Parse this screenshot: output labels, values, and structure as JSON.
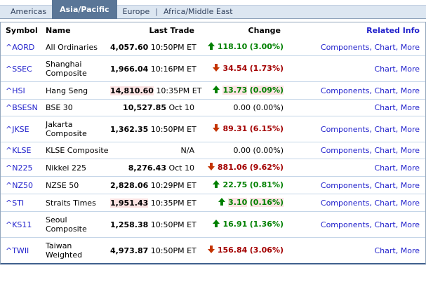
{
  "tabs": [
    {
      "label": "Americas",
      "active": false
    },
    {
      "label": "Asia/Pacific",
      "active": true
    },
    {
      "label": "Europe",
      "active": false
    },
    {
      "label": "Africa/Middle East",
      "active": false
    }
  ],
  "table": {
    "headers": [
      "Symbol",
      "Name",
      "Last Trade",
      "Change",
      "Related Info"
    ],
    "rows": [
      {
        "symbol": "^AORD",
        "name": "All Ordinaries",
        "price": "4,057.60",
        "time": "10:50PM ET",
        "direction": "up",
        "change": "118.10",
        "pct": "(3.00%)",
        "highlight": false,
        "links": [
          "Components",
          "Chart",
          "More"
        ]
      },
      {
        "symbol": "^SSEC",
        "name": "Shanghai Composite",
        "price": "1,966.04",
        "time": "10:16PM ET",
        "direction": "down",
        "change": "34.54",
        "pct": "(1.73%)",
        "highlight": false,
        "links": [
          "Chart",
          "More"
        ]
      },
      {
        "symbol": "^HSI",
        "name": "Hang Seng",
        "price": "14,810.60",
        "time": "10:35PM ET",
        "direction": "up",
        "change": "13.73",
        "pct": "(0.09%)",
        "highlight": true,
        "links": [
          "Components",
          "Chart",
          "More"
        ]
      },
      {
        "symbol": "^BSESN",
        "name": "BSE 30",
        "price": "10,527.85",
        "time": "Oct 10",
        "direction": "flat",
        "change": "0.00",
        "pct": "(0.00%)",
        "highlight": false,
        "links": [
          "Chart",
          "More"
        ]
      },
      {
        "symbol": "^JKSE",
        "name": "Jakarta Composite",
        "price": "1,362.35",
        "time": "10:50PM ET",
        "direction": "down",
        "change": "89.31",
        "pct": "(6.15%)",
        "highlight": false,
        "links": [
          "Components",
          "Chart",
          "More"
        ]
      },
      {
        "symbol": "^KLSE",
        "name": "KLSE Composite",
        "price": "N/A",
        "time": "",
        "direction": "flat",
        "change": "0.00",
        "pct": "(0.00%)",
        "highlight": false,
        "links": [
          "Components",
          "Chart",
          "More"
        ]
      },
      {
        "symbol": "^N225",
        "name": "Nikkei 225",
        "price": "8,276.43",
        "time": "Oct 10",
        "direction": "down",
        "change": "881.06",
        "pct": "(9.62%)",
        "highlight": false,
        "links": [
          "Chart",
          "More"
        ]
      },
      {
        "symbol": "^NZ50",
        "name": "NZSE 50",
        "price": "2,828.06",
        "time": "10:29PM ET",
        "direction": "up",
        "change": "22.75",
        "pct": "(0.81%)",
        "highlight": false,
        "links": [
          "Components",
          "Chart",
          "More"
        ]
      },
      {
        "symbol": "^STI",
        "name": "Straits Times",
        "price": "1,951.43",
        "time": "10:35PM ET",
        "direction": "up",
        "change": "3.10",
        "pct": "(0.16%)",
        "highlight": true,
        "links": [
          "Components",
          "Chart",
          "More"
        ]
      },
      {
        "symbol": "^KS11",
        "name": "Seoul Composite",
        "price": "1,258.38",
        "time": "10:50PM ET",
        "direction": "up",
        "change": "16.91",
        "pct": "(1.36%)",
        "highlight": false,
        "links": [
          "Components",
          "Chart",
          "More"
        ]
      },
      {
        "symbol": "^TWII",
        "name": "Taiwan Weighted",
        "price": "4,973.87",
        "time": "10:50PM ET",
        "direction": "down",
        "change": "156.84",
        "pct": "(3.06%)",
        "highlight": false,
        "links": [
          "Chart",
          "More"
        ]
      }
    ]
  },
  "icons": {
    "up": "up-arrow-icon",
    "down": "down-arrow-icon"
  },
  "colors": {
    "active_tab_bg": "#5a7697",
    "tab_bar_bg": "#dce6f1",
    "link_blue": "#2222cc",
    "up_green": "#008000",
    "down_red": "#a30000",
    "down_arrow_red": "#c43300",
    "flash_highlight_pink": "#fce3e3",
    "row_divider": "#c5d6e8",
    "table_bottom_border": "#40608d"
  }
}
